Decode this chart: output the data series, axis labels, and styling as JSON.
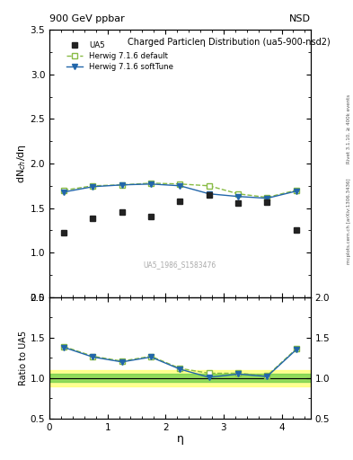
{
  "title_top": "900 GeV ppbar",
  "title_top_right": "NSD",
  "plot_title": "Charged Particleη Distribution",
  "plot_subtitle": "(ua5-900-nsd2)",
  "watermark": "UA5_1986_S1583476",
  "right_label_top": "Rivet 3.1.10, ≥ 400k events",
  "right_label_bottom": "mcplots.cern.ch [arXiv:1306.3436]",
  "ylabel_main": "dN$_{ch}$/dη",
  "ylabel_ratio": "Ratio to UA5",
  "xlabel": "η",
  "ylim_main": [
    0.5,
    3.5
  ],
  "ylim_ratio": [
    0.5,
    2.0
  ],
  "yticks_main": [
    0.5,
    1.0,
    1.5,
    2.0,
    2.5,
    3.0,
    3.5
  ],
  "yticks_ratio": [
    0.5,
    1.0,
    1.5,
    2.0
  ],
  "xlim": [
    0.0,
    4.5
  ],
  "xticks": [
    0,
    1,
    2,
    3,
    4
  ],
  "ua5_eta": [
    0.25,
    0.75,
    1.25,
    1.75,
    2.25,
    2.75,
    3.25,
    3.75,
    4.25
  ],
  "ua5_values": [
    1.22,
    1.38,
    1.46,
    1.4,
    1.58,
    1.65,
    1.56,
    1.57,
    1.25
  ],
  "herwig_default_eta": [
    0.25,
    0.75,
    1.25,
    1.75,
    2.25,
    2.75,
    3.25,
    3.75,
    4.25
  ],
  "herwig_default_values": [
    1.7,
    1.75,
    1.76,
    1.78,
    1.77,
    1.75,
    1.66,
    1.62,
    1.7
  ],
  "herwig_softtune_eta": [
    0.25,
    0.75,
    1.25,
    1.75,
    2.25,
    2.75,
    3.25,
    3.75,
    4.25
  ],
  "herwig_softtune_values": [
    1.68,
    1.74,
    1.76,
    1.77,
    1.75,
    1.66,
    1.63,
    1.61,
    1.69
  ],
  "ratio_default_eta": [
    0.25,
    0.75,
    1.25,
    1.75,
    2.25,
    2.75,
    3.25,
    3.75,
    4.25
  ],
  "ratio_default_values": [
    1.39,
    1.27,
    1.21,
    1.27,
    1.12,
    1.06,
    1.06,
    1.03,
    1.36
  ],
  "ratio_softtune_eta": [
    0.25,
    0.75,
    1.25,
    1.75,
    2.25,
    2.75,
    3.25,
    3.75,
    4.25
  ],
  "ratio_softtune_values": [
    1.38,
    1.26,
    1.2,
    1.26,
    1.11,
    1.01,
    1.05,
    1.02,
    1.35
  ],
  "ua5_color": "#222222",
  "herwig_default_color": "#88bb44",
  "herwig_softtune_color": "#2266aa",
  "band_green_inner": [
    0.95,
    1.05
  ],
  "band_yellow_outer": [
    0.9,
    1.1
  ],
  "background_color": "#ffffff"
}
